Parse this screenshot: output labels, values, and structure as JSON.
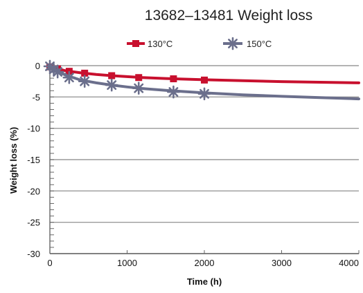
{
  "chart_data": {
    "type": "line",
    "title": "13682–13481 Weight loss",
    "xlabel": "Time (h)",
    "ylabel": "Weight loss (%)",
    "xlim": [
      0,
      4000
    ],
    "ylim": [
      -30,
      0
    ],
    "x_ticks": [
      "0",
      "1000",
      "2000",
      "3000",
      "4000"
    ],
    "y_ticks": [
      "0",
      "-5",
      "-10",
      "-15",
      "-20",
      "-25",
      "-30"
    ],
    "grid": "horizontal",
    "legend_position": "top-center",
    "series": [
      {
        "name": "130°C",
        "color": "#c8102e",
        "marker": "square",
        "points": [
          {
            "x": 0,
            "y": -0.2
          },
          {
            "x": 100,
            "y": -0.5
          },
          {
            "x": 250,
            "y": -0.9
          },
          {
            "x": 450,
            "y": -1.2
          },
          {
            "x": 800,
            "y": -1.6
          },
          {
            "x": 1150,
            "y": -1.9
          },
          {
            "x": 1600,
            "y": -2.1
          },
          {
            "x": 2000,
            "y": -2.3
          }
        ],
        "fit": [
          {
            "x": 0,
            "y": 0
          },
          {
            "x": 50,
            "y": -0.3
          },
          {
            "x": 100,
            "y": -0.5
          },
          {
            "x": 200,
            "y": -0.8
          },
          {
            "x": 400,
            "y": -1.15
          },
          {
            "x": 600,
            "y": -1.4
          },
          {
            "x": 800,
            "y": -1.6
          },
          {
            "x": 1000,
            "y": -1.75
          },
          {
            "x": 1200,
            "y": -1.9
          },
          {
            "x": 1500,
            "y": -2.05
          },
          {
            "x": 2000,
            "y": -2.25
          },
          {
            "x": 2500,
            "y": -2.4
          },
          {
            "x": 3000,
            "y": -2.55
          },
          {
            "x": 3500,
            "y": -2.65
          },
          {
            "x": 4000,
            "y": -2.75
          }
        ]
      },
      {
        "name": "150°C",
        "color": "#6b6f8c",
        "marker": "asterisk",
        "points": [
          {
            "x": 0,
            "y": -0.1
          },
          {
            "x": 50,
            "y": -0.6
          },
          {
            "x": 100,
            "y": -1.0
          },
          {
            "x": 250,
            "y": -1.9
          },
          {
            "x": 450,
            "y": -2.5
          },
          {
            "x": 800,
            "y": -3.1
          },
          {
            "x": 1150,
            "y": -3.6
          },
          {
            "x": 1600,
            "y": -4.2
          },
          {
            "x": 2000,
            "y": -4.5
          }
        ],
        "fit": [
          {
            "x": 0,
            "y": 0
          },
          {
            "x": 50,
            "y": -0.5
          },
          {
            "x": 100,
            "y": -0.9
          },
          {
            "x": 200,
            "y": -1.5
          },
          {
            "x": 400,
            "y": -2.3
          },
          {
            "x": 600,
            "y": -2.75
          },
          {
            "x": 800,
            "y": -3.1
          },
          {
            "x": 1000,
            "y": -3.4
          },
          {
            "x": 1200,
            "y": -3.65
          },
          {
            "x": 1500,
            "y": -3.95
          },
          {
            "x": 2000,
            "y": -4.35
          },
          {
            "x": 2500,
            "y": -4.65
          },
          {
            "x": 3000,
            "y": -4.9
          },
          {
            "x": 3500,
            "y": -5.1
          },
          {
            "x": 4000,
            "y": -5.3
          }
        ]
      }
    ]
  }
}
